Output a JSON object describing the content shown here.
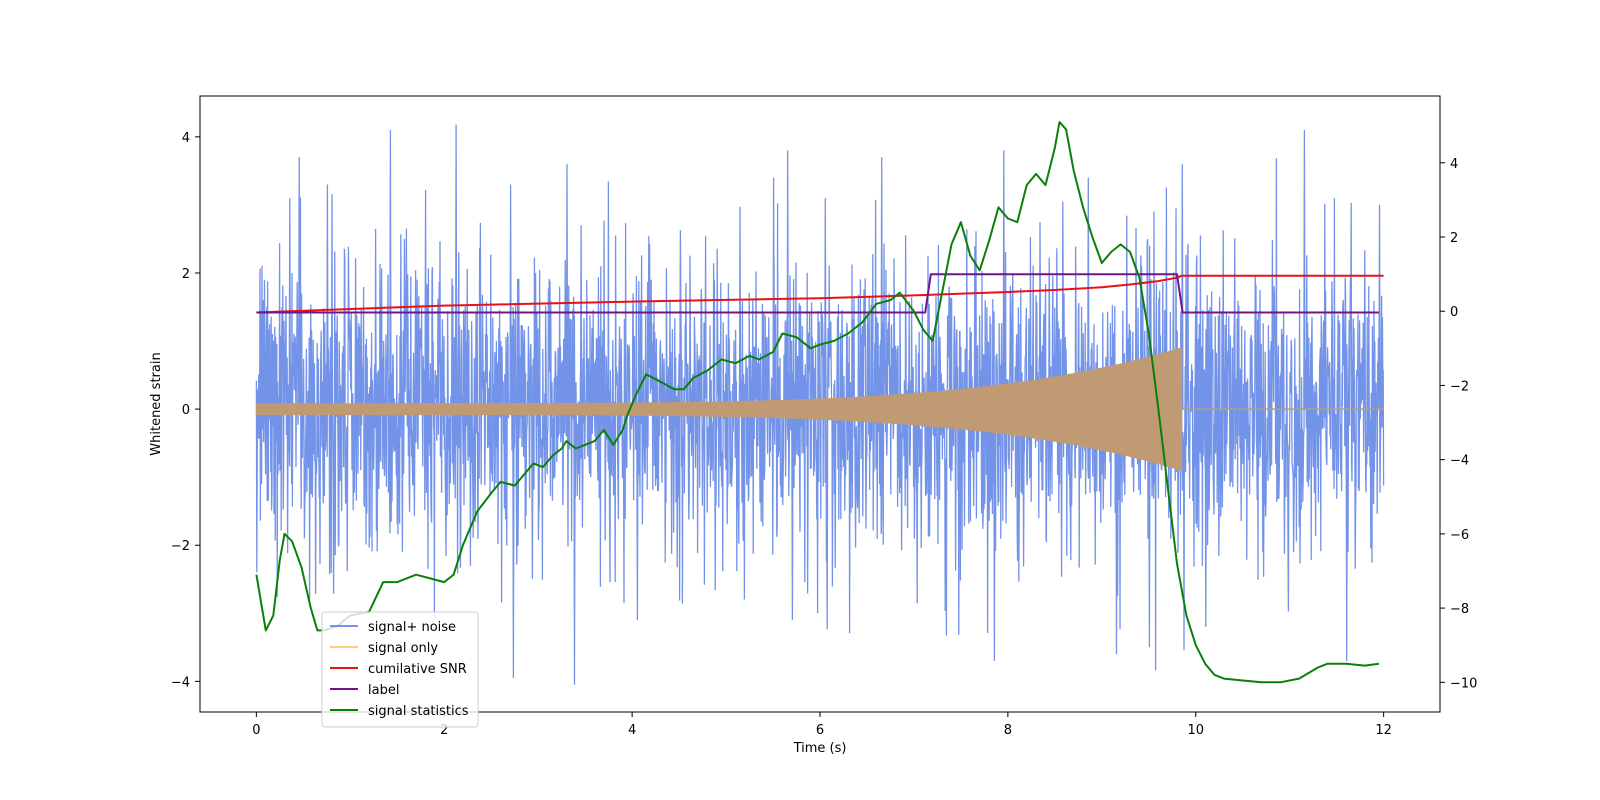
{
  "chart_data": {
    "type": "line",
    "title": "",
    "xlabel": "Time (s)",
    "ylabel": "Whitened strain",
    "y2label": "",
    "xlim": [
      -0.6,
      12.6
    ],
    "ylim": [
      -4.45,
      4.6
    ],
    "y2lim": [
      -10.8,
      5.8
    ],
    "xticks": [
      0,
      2,
      4,
      6,
      8,
      10,
      12
    ],
    "yticks": [
      -4,
      -2,
      0,
      2,
      4
    ],
    "y2ticks": [
      -10,
      -8,
      -6,
      -4,
      -2,
      0,
      2,
      4
    ],
    "grid": false,
    "legend_position": "lower-left",
    "series": [
      {
        "name": "signal+ noise",
        "color": "#7393e8",
        "axis": "left",
        "kind": "noise-band",
        "t_start": 0,
        "t_end": 12,
        "typical_envelope": [
          -1.7,
          1.7
        ],
        "peak_range": [
          -4.05,
          4.18
        ],
        "notable_peaks": [
          [
            0.08,
            1.9
          ],
          [
            0.35,
            3.1
          ],
          [
            0.45,
            3.7
          ],
          [
            0.75,
            3.3
          ],
          [
            1.42,
            4.1
          ],
          [
            2.12,
            4.18
          ],
          [
            2.7,
            3.3
          ],
          [
            3.3,
            3.6
          ],
          [
            3.45,
            2.7
          ],
          [
            5.5,
            3.4
          ],
          [
            5.65,
            3.8
          ],
          [
            6.05,
            3.1
          ],
          [
            6.65,
            3.7
          ],
          [
            7.95,
            3.8
          ],
          [
            8.85,
            3.4
          ],
          [
            9.85,
            3.6
          ],
          [
            11.15,
            4.1
          ],
          [
            11.95,
            3.0
          ],
          [
            2.73,
            -3.95
          ],
          [
            3.38,
            -4.05
          ],
          [
            4.05,
            -3.1
          ],
          [
            5.7,
            -3.1
          ],
          [
            7.85,
            -3.7
          ],
          [
            9.15,
            -3.6
          ],
          [
            9.5,
            -3.5
          ],
          [
            10.1,
            -3.2
          ],
          [
            11.6,
            -3.7
          ]
        ]
      },
      {
        "name": "signal only",
        "color": "#c09a72",
        "axis": "left",
        "kind": "chirp",
        "t_start": 0,
        "t_merge": 9.85,
        "t_end": 12,
        "amplitude_start": 0.08,
        "amplitude_peak": 0.9,
        "amplitude_after": 0.0
      },
      {
        "name": "cumilative SNR",
        "color": "#e8111a",
        "axis": "left",
        "x": [
          0,
          2,
          4,
          6,
          7,
          8,
          8.5,
          9,
          9.3,
          9.6,
          9.8,
          9.85,
          12
        ],
        "y": [
          1.42,
          1.52,
          1.58,
          1.63,
          1.67,
          1.72,
          1.75,
          1.79,
          1.83,
          1.88,
          1.93,
          1.96,
          1.96
        ]
      },
      {
        "name": "label",
        "color": "#70168a",
        "axis": "left",
        "x": [
          0,
          7.12,
          7.18,
          9.8,
          9.86,
          11.95
        ],
        "y": [
          1.42,
          1.42,
          1.98,
          1.98,
          1.42,
          1.42
        ]
      },
      {
        "name": "signal statistics",
        "color": "#0a800a",
        "axis": "right",
        "x": [
          0,
          0.1,
          0.18,
          0.25,
          0.3,
          0.38,
          0.48,
          0.58,
          0.65,
          0.72,
          0.85,
          1.0,
          1.2,
          1.35,
          1.5,
          1.7,
          1.85,
          2.0,
          2.1,
          2.2,
          2.35,
          2.5,
          2.6,
          2.75,
          2.85,
          2.95,
          3.05,
          3.15,
          3.25,
          3.3,
          3.4,
          3.5,
          3.6,
          3.7,
          3.8,
          3.9,
          3.95,
          4.05,
          4.15,
          4.3,
          4.45,
          4.55,
          4.65,
          4.8,
          4.95,
          5.1,
          5.25,
          5.35,
          5.5,
          5.6,
          5.75,
          5.9,
          6.0,
          6.15,
          6.3,
          6.45,
          6.6,
          6.75,
          6.85,
          7.0,
          7.1,
          7.2,
          7.3,
          7.4,
          7.5,
          7.6,
          7.7,
          7.8,
          7.9,
          8.0,
          8.1,
          8.2,
          8.3,
          8.4,
          8.5,
          8.55,
          8.62,
          8.7,
          8.8,
          8.9,
          9.0,
          9.1,
          9.2,
          9.3,
          9.4,
          9.5,
          9.6,
          9.7,
          9.8,
          9.9,
          10.0,
          10.1,
          10.2,
          10.3,
          10.5,
          10.7,
          10.9,
          11.1,
          11.3,
          11.4,
          11.6,
          11.8,
          11.95
        ],
        "y": [
          -7.1,
          -8.6,
          -8.2,
          -6.7,
          -6.0,
          -6.2,
          -6.9,
          -8.0,
          -8.6,
          -8.6,
          -8.5,
          -8.2,
          -8.1,
          -7.3,
          -7.3,
          -7.1,
          -7.2,
          -7.3,
          -7.1,
          -6.3,
          -5.4,
          -4.9,
          -4.6,
          -4.7,
          -4.4,
          -4.1,
          -4.2,
          -3.9,
          -3.7,
          -3.5,
          -3.7,
          -3.6,
          -3.5,
          -3.2,
          -3.6,
          -3.2,
          -2.8,
          -2.2,
          -1.7,
          -1.9,
          -2.1,
          -2.1,
          -1.8,
          -1.6,
          -1.3,
          -1.4,
          -1.2,
          -1.3,
          -1.1,
          -0.6,
          -0.7,
          -1.0,
          -0.9,
          -0.8,
          -0.6,
          -0.3,
          0.2,
          0.3,
          0.5,
          0.0,
          -0.5,
          -0.8,
          0.5,
          1.8,
          2.4,
          1.5,
          1.1,
          1.9,
          2.8,
          2.5,
          2.4,
          3.4,
          3.7,
          3.4,
          4.4,
          5.1,
          4.9,
          3.8,
          2.8,
          2.0,
          1.3,
          1.6,
          1.8,
          1.6,
          0.9,
          -0.6,
          -2.6,
          -4.7,
          -6.8,
          -8.2,
          -9.0,
          -9.5,
          -9.8,
          -9.9,
          -9.95,
          -10.0,
          -10.0,
          -9.9,
          -9.6,
          -9.5,
          -9.5,
          -9.55,
          -9.5
        ]
      }
    ]
  }
}
